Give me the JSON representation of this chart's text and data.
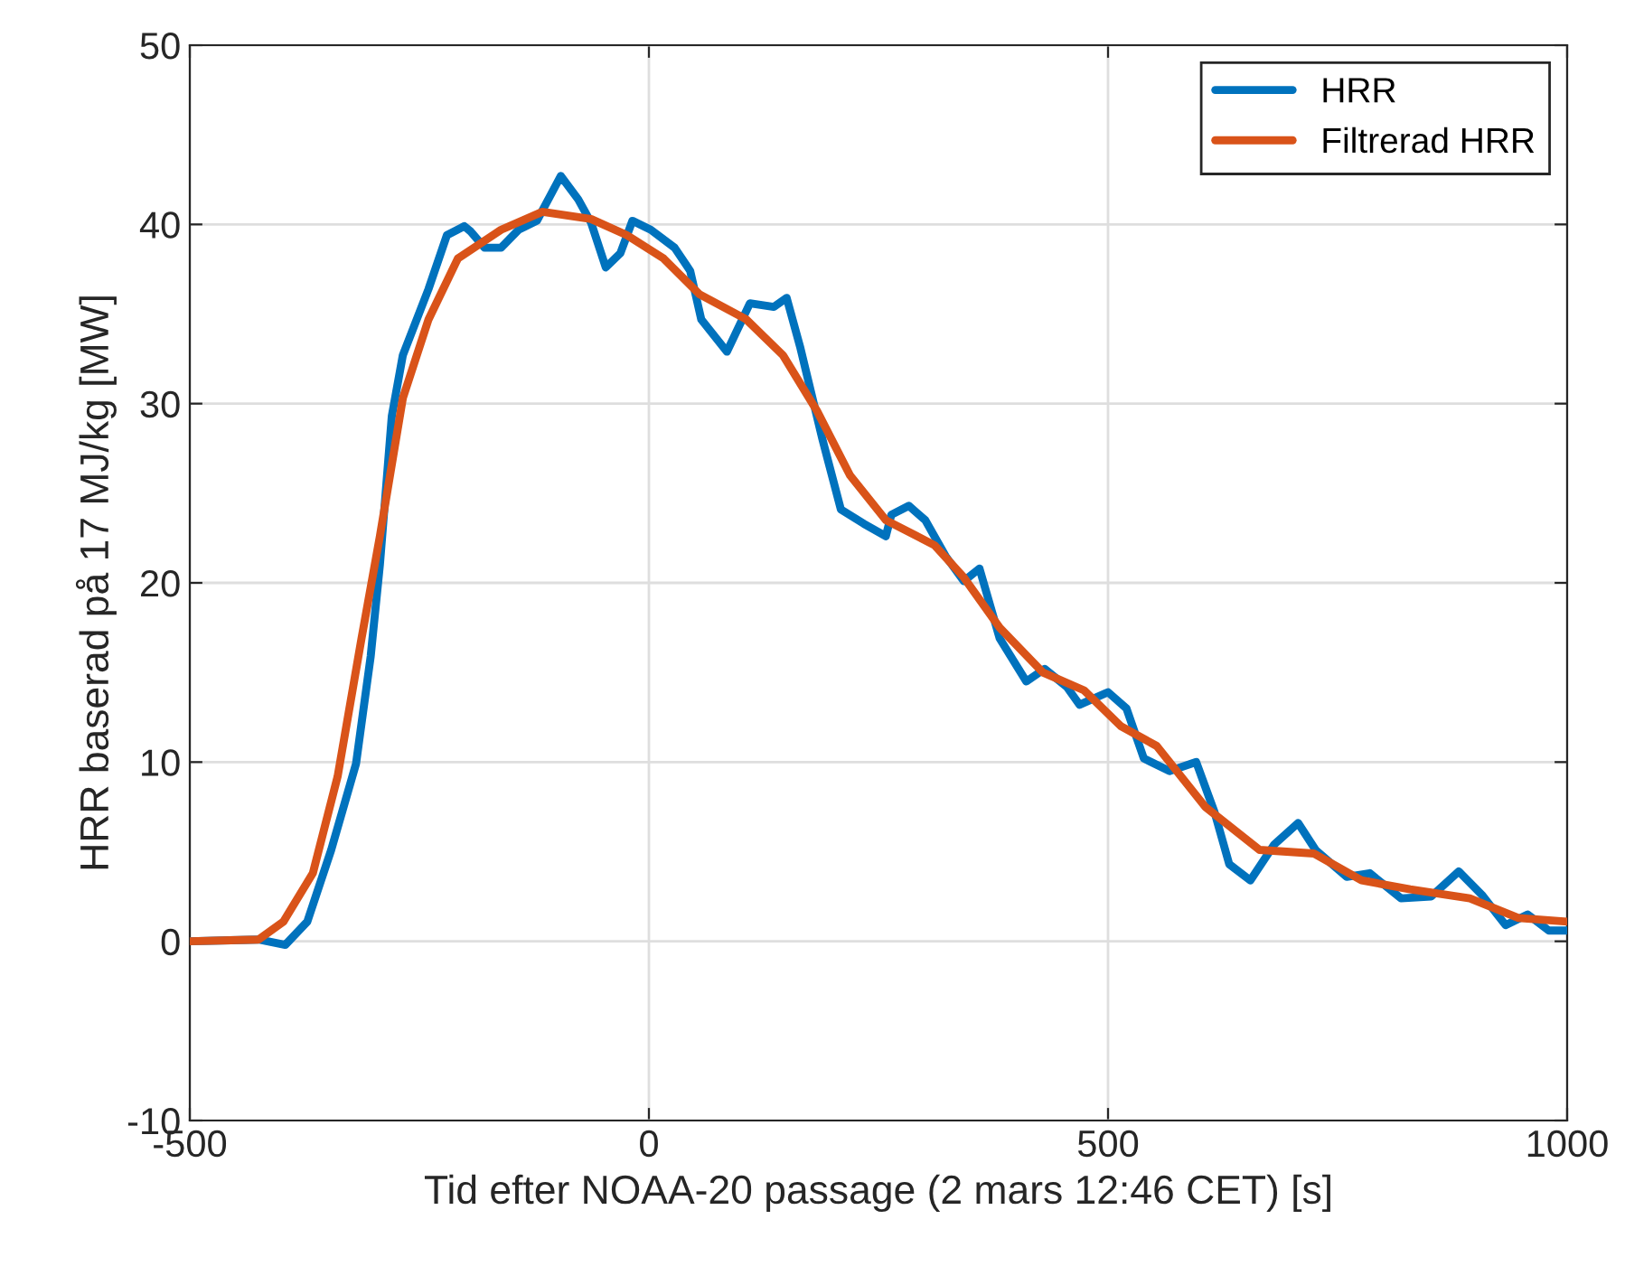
{
  "chart_data": {
    "type": "line",
    "xlabel": "Tid efter NOAA-20 passage (2 mars 12:46 CET) [s]",
    "ylabel": "HRR baserad på 17 MJ/kg [MW]",
    "xlim": [
      -500,
      1000
    ],
    "xticks": [
      -500,
      0,
      500,
      1000
    ],
    "ylim": [
      -10,
      50
    ],
    "yticks": [
      -10,
      0,
      10,
      20,
      30,
      40,
      50
    ],
    "grid": true,
    "legend": "top right",
    "line_style": "solid",
    "marker": "none",
    "series": [
      {
        "name": "HRR",
        "color": "#0072bd",
        "x": [
          -500,
          -425,
          -396,
          -372,
          -346,
          -319,
          -303,
          -293,
          -280,
          -268,
          -240,
          -220,
          -201,
          -194,
          -179,
          -161,
          -142,
          -122,
          -96,
          -77,
          -63,
          -47,
          -31,
          -18,
          2,
          28,
          45,
          57,
          85,
          110,
          136,
          150,
          165,
          189,
          209,
          234,
          258,
          264,
          283,
          301,
          323,
          343,
          360,
          382,
          411,
          431,
          455,
          469,
          500,
          520,
          539,
          567,
          596,
          616,
          632,
          655,
          681,
          707,
          726,
          760,
          785,
          819,
          852,
          882,
          907,
          933,
          957,
          980,
          1000
        ],
        "values": [
          0,
          0.1,
          -0.2,
          1.1,
          5.1,
          9.9,
          15.9,
          21,
          29.3,
          32.7,
          36.4,
          39.4,
          39.9,
          39.6,
          38.7,
          38.7,
          39.7,
          40.2,
          42.7,
          41.4,
          40.1,
          37.6,
          38.4,
          40.2,
          39.7,
          38.7,
          37.4,
          34.7,
          32.9,
          35.6,
          35.4,
          35.9,
          33.1,
          28,
          24.1,
          23.3,
          22.6,
          23.8,
          24.3,
          23.5,
          21.5,
          20.1,
          20.8,
          16.9,
          14.5,
          15.2,
          14.2,
          13.2,
          13.9,
          13,
          10.2,
          9.5,
          10,
          7.2,
          4.3,
          3.4,
          5.4,
          6.6,
          5.1,
          3.6,
          3.8,
          2.4,
          2.5,
          3.9,
          2.6,
          0.9,
          1.5,
          0.6,
          0.6
        ]
      },
      {
        "name": "Filtrerad HRR",
        "color": "#d95319",
        "x": [
          -500,
          -425,
          -398,
          -366,
          -339,
          -313,
          -293,
          -268,
          -240,
          -208,
          -161,
          -116,
          -63,
          -24,
          16,
          55,
          106,
          146,
          183,
          219,
          258,
          311,
          343,
          382,
          429,
          474,
          514,
          553,
          606,
          665,
          724,
          776,
          829,
          894,
          947,
          1000
        ],
        "values": [
          0,
          0.1,
          1.1,
          3.8,
          9.2,
          16.9,
          22.6,
          30.3,
          34.7,
          38.1,
          39.7,
          40.7,
          40.3,
          39.4,
          38.1,
          36.1,
          34.7,
          32.7,
          29.6,
          26,
          23.5,
          22.1,
          20.3,
          17.5,
          15,
          14,
          12,
          10.9,
          7.5,
          5.1,
          4.9,
          3.4,
          2.9,
          2.4,
          1.3,
          1.1
        ]
      }
    ]
  }
}
